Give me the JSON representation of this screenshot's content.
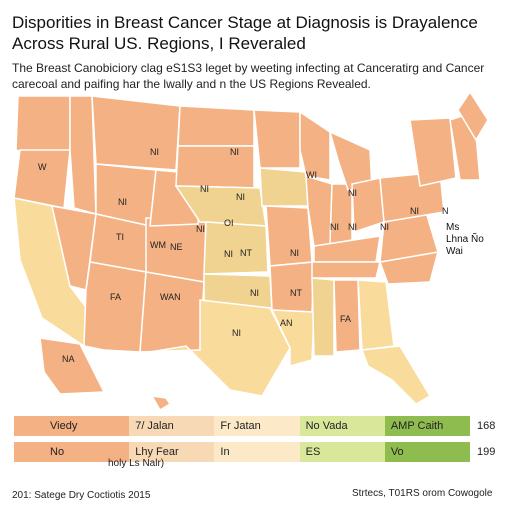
{
  "header": {
    "title": "Disporities in Breast Cancer Stage at Diagnosis is Drayalence Across Rural US. Regions, I Reveraled",
    "subtitle": "The Breast Canobiciory clag eS1S3 leget by weeting infecting at Canceratirg and Cancer carecoal and paifing har the lwally and n the US Regions Revealed."
  },
  "colors": {
    "state_orange": "#f4b183",
    "state_light": "#f7cc8f",
    "state_pale": "#f9dc9c",
    "state_tan": "#f0d390",
    "state_border": "#ffffff",
    "legend": [
      "#f4b183",
      "#f8d9b6",
      "#fbe9c8",
      "#d9e79b",
      "#8fbc4f"
    ]
  },
  "map": {
    "state_labels": [
      "NI",
      "W",
      "NI",
      "NI",
      "WM",
      "NI",
      "NI",
      "WI",
      "NI",
      "NI",
      "OI",
      "NI",
      "TI",
      "NE",
      "NT",
      "NI",
      "NT",
      "NI",
      "FA",
      "WAN",
      "AN",
      "NI",
      "NI",
      "NI",
      "FA",
      "NI",
      "NI",
      "NA",
      "N"
    ],
    "side_note": [
      "Ms",
      "Lhna Ño",
      "Wai"
    ]
  },
  "legend": {
    "rows": [
      {
        "labels": [
          "Viedy",
          "7/ Jalan",
          "Fr Jatan",
          "No Vada",
          "AMP Caith"
        ],
        "value": "168"
      },
      {
        "labels": [
          "No",
          "Lhy Fear",
          "In",
          "ES",
          "Vo"
        ],
        "value": "199"
      }
    ],
    "sub_label": "holy Ls Nalr)"
  },
  "footer": {
    "left": "201: Satege Dry Coctiotis 2015",
    "right": "Strtecs, T01RS orom Cowogole"
  }
}
